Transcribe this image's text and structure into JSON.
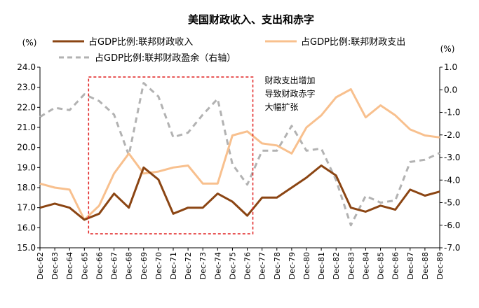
{
  "chart_data": {
    "type": "line",
    "title": "美国财政收入、支出和赤字",
    "ylabel_left": "(%)",
    "ylabel_right": "(%)",
    "categories": [
      "Dec-62",
      "Dec-63",
      "Dec-64",
      "Dec-65",
      "Dec-66",
      "Dec-67",
      "Dec-68",
      "Dec-69",
      "Dec-70",
      "Dec-71",
      "Dec-72",
      "Dec-73",
      "Dec-74",
      "Dec-75",
      "Dec-76",
      "Dec-77",
      "Dec-78",
      "Dec-79",
      "Dec-80",
      "Dec-81",
      "Dec-82",
      "Dec-83",
      "Dec-84",
      "Dec-85",
      "Dec-86",
      "Dec-87",
      "Dec-88",
      "Dec-89"
    ],
    "ylim_left": [
      15.0,
      24.0
    ],
    "yticks_left": [
      "24.0",
      "23.0",
      "22.0",
      "21.0",
      "20.0",
      "19.0",
      "18.0",
      "17.0",
      "16.0",
      "15.0"
    ],
    "ylim_right": [
      -7.0,
      1.0
    ],
    "yticks_right": [
      "1.0",
      "0.0",
      "-1.0",
      "-2.0",
      "-3.0",
      "-4.0",
      "-5.0",
      "-6.0",
      "-7.0"
    ],
    "series": [
      {
        "name": "占GDP比例:联邦财政收入",
        "axis": "left",
        "color": "#8B4513",
        "dash": false,
        "values": [
          17.0,
          17.2,
          17.0,
          16.4,
          16.7,
          17.7,
          17.0,
          19.0,
          18.4,
          16.7,
          17.0,
          17.0,
          17.7,
          17.3,
          16.6,
          17.5,
          17.5,
          18.0,
          18.5,
          19.1,
          18.6,
          17.0,
          16.8,
          17.1,
          16.9,
          17.9,
          17.6,
          17.8
        ]
      },
      {
        "name": "占GDP比例:联邦财政支出",
        "axis": "left",
        "color": "#F8C08E",
        "dash": false,
        "values": [
          18.2,
          18.0,
          17.9,
          16.4,
          17.1,
          18.7,
          19.7,
          18.7,
          18.8,
          19.0,
          19.1,
          18.2,
          18.2,
          20.6,
          20.8,
          20.2,
          20.1,
          19.7,
          21.0,
          21.6,
          22.5,
          22.9,
          21.5,
          22.1,
          21.6,
          20.9,
          20.6,
          20.5
        ]
      },
      {
        "name": "占GDP比例:联邦财政盈余（右轴）",
        "axis": "right",
        "color": "#B2B2B2",
        "dash": true,
        "values": [
          -1.2,
          -0.8,
          -0.9,
          -0.2,
          -0.5,
          -1.1,
          -2.9,
          0.3,
          -0.3,
          -2.1,
          -1.9,
          -1.1,
          -0.4,
          -3.3,
          -4.2,
          -2.7,
          -2.7,
          -1.6,
          -2.7,
          -2.6,
          -4.0,
          -6.0,
          -4.7,
          -5.0,
          -4.9,
          -3.2,
          -3.1,
          -2.8
        ]
      }
    ],
    "annotation": "财政支出增加导致财政赤字大幅扩张",
    "highlight_box": {
      "from": "Dec-65",
      "to": "Dec-76",
      "color": "#E02020"
    },
    "legend_placement": "top"
  }
}
